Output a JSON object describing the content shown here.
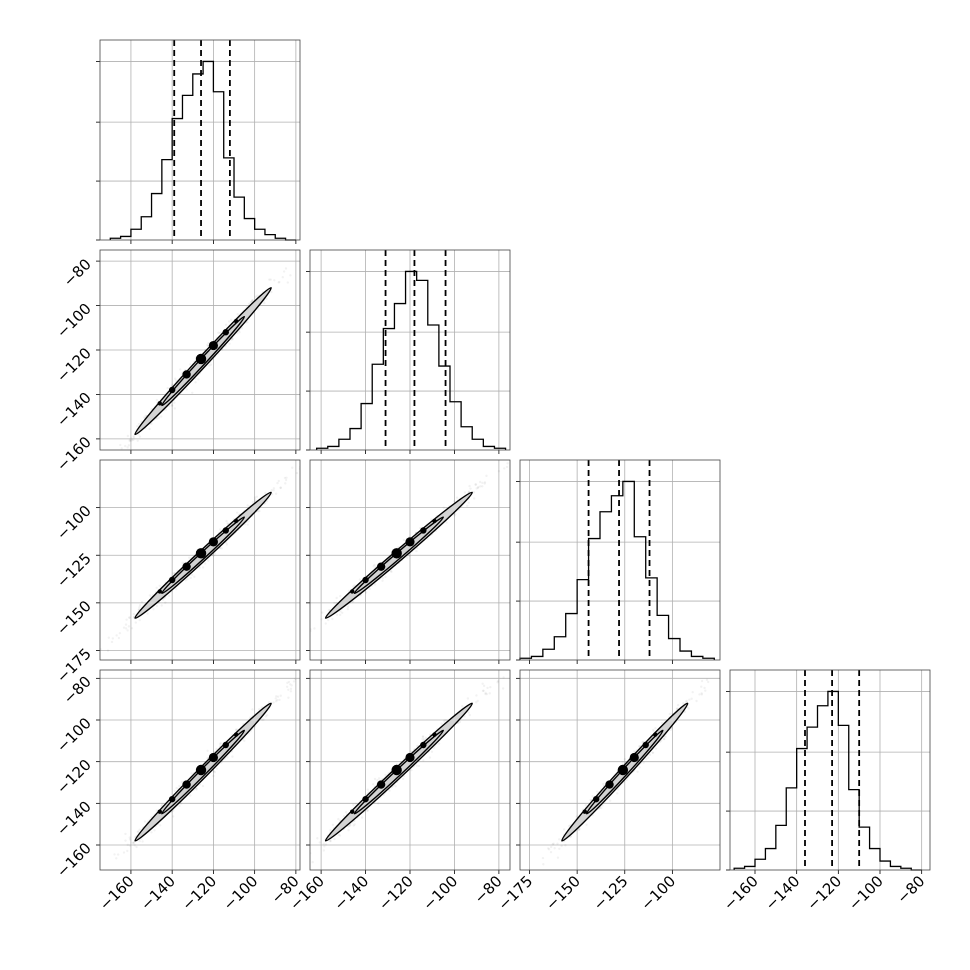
{
  "chart_data": {
    "type": "corner",
    "description_note": "",
    "parameters": [
      {
        "name": "",
        "range": [
          -175,
          -78
        ]
      },
      {
        "name": "",
        "range": [
          -165,
          -75
        ]
      },
      {
        "name": "",
        "range": [
          -180,
          -75
        ]
      },
      {
        "name": "",
        "range": [
          -172,
          -76
        ]
      }
    ],
    "diagonal_histograms": [
      {
        "param": 0,
        "bin_edges": [
          -170,
          -165,
          -160,
          -155,
          -150,
          -145,
          -140,
          -135,
          -130,
          -125,
          -120,
          -115,
          -110,
          -105,
          -100,
          -95,
          -90,
          -85,
          -80
        ],
        "counts": [
          1,
          2,
          6,
          13,
          26,
          45,
          68,
          81,
          93,
          100,
          83,
          46,
          24,
          12,
          6,
          3,
          1,
          0
        ],
        "quantiles": [
          -139,
          -126,
          -112
        ]
      },
      {
        "param": 1,
        "bin_edges": [
          -162,
          -157,
          -152,
          -147,
          -142,
          -137,
          -132,
          -127,
          -122,
          -117,
          -112,
          -107,
          -102,
          -97,
          -92,
          -87,
          -82,
          -77
        ],
        "counts": [
          1,
          2,
          6,
          12,
          26,
          48,
          68,
          82,
          100,
          95,
          70,
          47,
          27,
          13,
          6,
          2,
          1
        ],
        "quantiles": [
          -131,
          -118,
          -104
        ]
      },
      {
        "param": 2,
        "bin_edges": [
          -180,
          -174,
          -168,
          -162,
          -156,
          -150,
          -144,
          -138,
          -132,
          -126,
          -120,
          -114,
          -108,
          -102,
          -96,
          -90,
          -84,
          -78
        ],
        "counts": [
          1,
          2,
          6,
          13,
          26,
          45,
          68,
          83,
          92,
          100,
          69,
          46,
          25,
          12,
          5,
          2,
          1
        ],
        "quantiles": [
          -144,
          -128,
          -112
        ]
      },
      {
        "param": 3,
        "bin_edges": [
          -170,
          -165,
          -160,
          -155,
          -150,
          -145,
          -140,
          -135,
          -130,
          -125,
          -120,
          -115,
          -110,
          -105,
          -100,
          -95,
          -90,
          -85,
          -80
        ],
        "counts": [
          1,
          2,
          6,
          12,
          25,
          46,
          68,
          80,
          92,
          100,
          81,
          45,
          24,
          12,
          5,
          2,
          1,
          0
        ],
        "quantiles": [
          -136,
          -123,
          -110
        ]
      }
    ],
    "pair_correlation": "strong positive linear (near y = x)",
    "tick_labels": {
      "col0_x": [
        "−160",
        "−140",
        "−120",
        "−100",
        "−80"
      ],
      "col1_x": [
        "−160",
        "−140",
        "−120",
        "−100",
        "−80"
      ],
      "col2_x": [
        "−175",
        "−150",
        "−125",
        "−100"
      ],
      "col3_x": [
        "−160",
        "−140",
        "−120",
        "−100",
        "−80"
      ],
      "row1_y": [
        "−80",
        "−100",
        "−120",
        "−140",
        "−160"
      ],
      "row2_y": [
        "−100",
        "−125",
        "−150",
        "−175"
      ],
      "row3_y": [
        "−80",
        "−100",
        "−120",
        "−140",
        "−160"
      ]
    }
  }
}
